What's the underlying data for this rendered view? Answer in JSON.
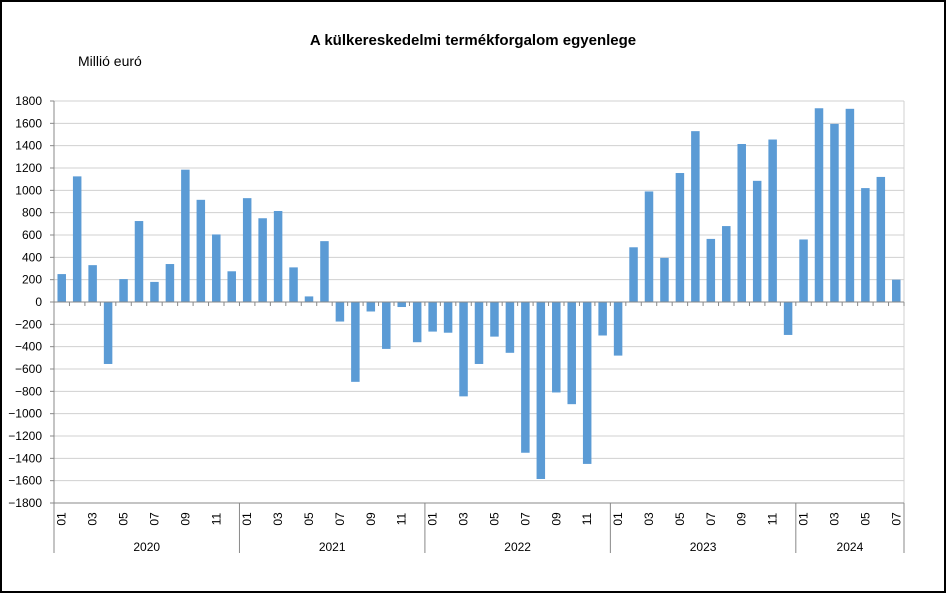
{
  "chart_data": {
    "type": "bar",
    "title": "A külkereskedelmi termékforgalom egyenlege",
    "unit_label": "Millió euró",
    "xlabel": "",
    "ylabel": "",
    "ylim": [
      -1800,
      1800
    ],
    "yticks": [
      1800,
      1600,
      1400,
      1200,
      1000,
      800,
      600,
      400,
      200,
      0,
      -200,
      -400,
      -600,
      -800,
      -1000,
      -1200,
      -1400,
      -1600,
      -1800
    ],
    "ytick_labels": [
      "1800",
      "1600",
      "1400",
      "1200",
      "1000",
      "800",
      "600",
      "400",
      "200",
      "0",
      "−200",
      "−400",
      "−600",
      "−800",
      "−1000",
      "−1200",
      "−1400",
      "−1600",
      "−1800"
    ],
    "grid": true,
    "bar_color": "#5B9BD5",
    "years": [
      {
        "label": "2020",
        "months": 12
      },
      {
        "label": "2021",
        "months": 12
      },
      {
        "label": "2022",
        "months": 12
      },
      {
        "label": "2023",
        "months": 12
      },
      {
        "label": "2024",
        "months": 7
      }
    ],
    "month_labels": [
      "01",
      "03",
      "05",
      "07",
      "09",
      "11"
    ],
    "month_labels_2024": [
      "01",
      "03",
      "05",
      "07"
    ],
    "series": [
      {
        "values": [
          250,
          1125,
          330,
          -555,
          205,
          725,
          180,
          340,
          1185,
          915,
          605,
          275,
          930,
          750,
          815,
          310,
          50,
          545,
          -175,
          -715,
          -85,
          -420,
          -45,
          -360,
          -265,
          -275,
          -845,
          -555,
          -310,
          -455,
          -1350,
          -1585,
          -810,
          -915,
          -1450,
          -300,
          -480,
          490,
          990,
          395,
          1155,
          1530,
          565,
          680,
          1415,
          1085,
          1455,
          -295,
          560,
          1735,
          1595,
          1730,
          1020,
          1120,
          200
        ]
      }
    ]
  }
}
